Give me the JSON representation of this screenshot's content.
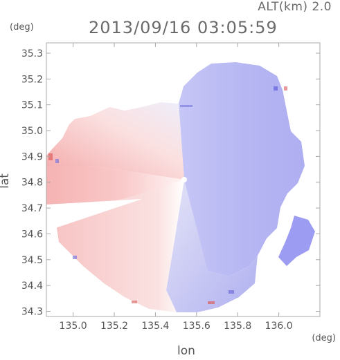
{
  "header": {
    "altitude_label": "ALT(km)  2.0",
    "timestamp": "2013/09/16  03:05:59"
  },
  "axes": {
    "y_unit": "(deg)",
    "x_unit": "(deg)",
    "x_label": "lon",
    "y_label": "lat"
  },
  "chart_data": {
    "type": "heatmap",
    "title": "2013/09/16  03:05:59",
    "xlabel": "lon",
    "ylabel": "lat",
    "xlim": [
      134.87,
      136.2
    ],
    "ylim": [
      34.28,
      35.34
    ],
    "x_ticks": [
      "135.0",
      "135.2",
      "135.4",
      "135.6",
      "135.8",
      "136.0"
    ],
    "x_tick_values": [
      135.0,
      135.2,
      135.4,
      135.6,
      135.8,
      136.0
    ],
    "y_ticks": [
      "34.3",
      "34.4",
      "34.5",
      "34.6",
      "34.7",
      "34.8",
      "34.9",
      "35.0",
      "35.1",
      "35.2",
      "35.3"
    ],
    "y_tick_values": [
      34.3,
      34.4,
      34.5,
      34.6,
      34.7,
      34.8,
      34.9,
      35.0,
      35.1,
      35.2,
      35.3
    ],
    "radar_center": [
      135.52,
      34.8
    ],
    "grid": false,
    "colors": {
      "positive": "#f08a8a",
      "negative": "#8c8cf2",
      "neutral": "#ffffff",
      "frame": "#a0a0a0"
    }
  }
}
